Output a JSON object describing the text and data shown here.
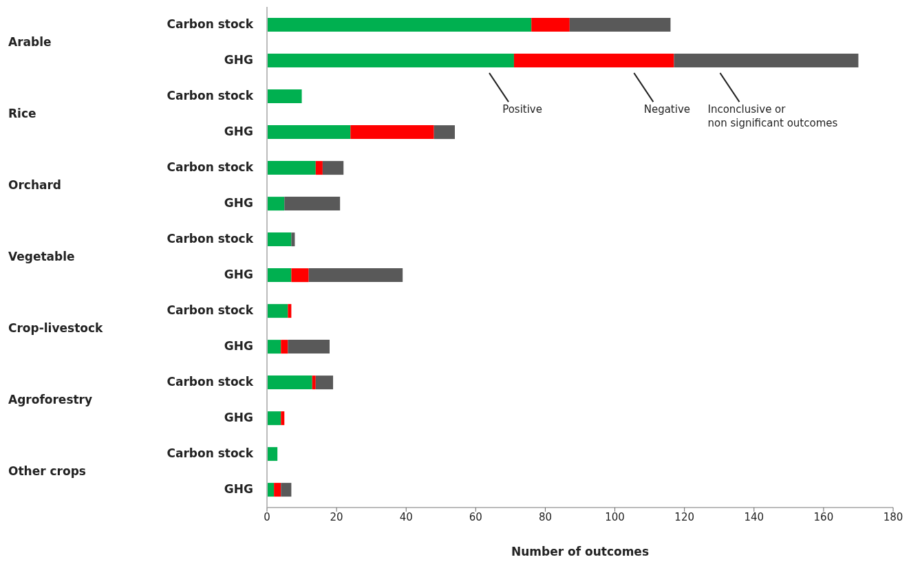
{
  "chart_data": {
    "type": "bar",
    "orientation": "horizontal",
    "stacked": true,
    "legend": false,
    "grid": false,
    "xlabel": "Number of outcomes",
    "categories": [
      "Carbon stock",
      "GHG",
      "Carbon stock",
      "GHG",
      "Carbon stock",
      "GHG",
      "Carbon stock",
      "GHG",
      "Carbon stock",
      "GHG",
      "Carbon stock",
      "GHG",
      "Carbon stock",
      "GHG"
    ],
    "annotations": [
      "Arable",
      "Rice",
      "Orchard",
      "Vegetable",
      "Crop-livestock",
      "Agroforestry",
      "Other crops"
    ],
    "series": [
      {
        "name": "Positive",
        "color": "#00b050",
        "values": [
          76,
          71,
          10,
          24,
          14,
          5,
          7,
          7,
          6,
          4,
          13,
          4,
          3,
          2
        ]
      },
      {
        "name": "Negative",
        "color": "#ff0000",
        "values": [
          11,
          46,
          0,
          24,
          2,
          0,
          0,
          5,
          1,
          2,
          1,
          1,
          0,
          2
        ]
      },
      {
        "name": "Inconclusive or\nnon significant outcomes",
        "color": "#595959",
        "values": [
          29,
          53,
          0,
          6,
          6,
          16,
          1,
          27,
          0,
          12,
          5,
          0,
          0,
          3
        ]
      }
    ],
    "xlim": [
      0,
      180
    ],
    "xticks": [
      0,
      20,
      40,
      60,
      80,
      100,
      120,
      140,
      160,
      180
    ]
  }
}
